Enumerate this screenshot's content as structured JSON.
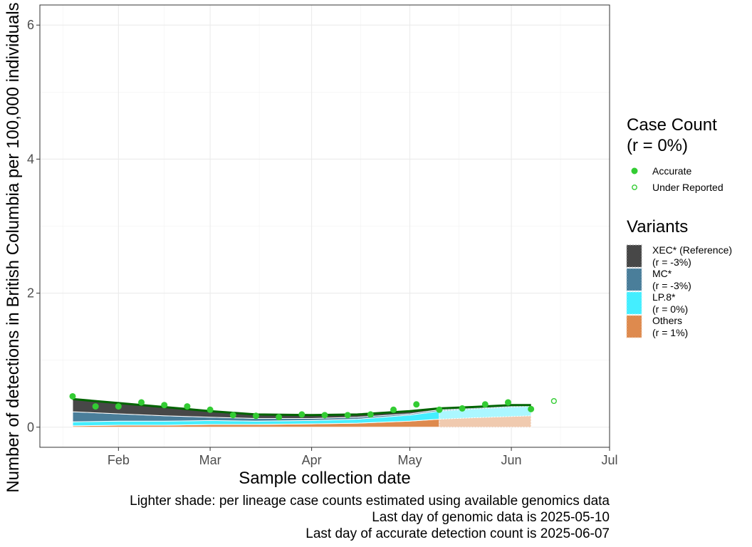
{
  "chart_data": {
    "type": "area",
    "xlabel": "Sample collection date",
    "ylabel": "Number of detections in British Columbia per 100,000 individuals",
    "xlim": [
      "2025-01-08",
      "2025-07-01"
    ],
    "ylim": [
      -0.3,
      6.3
    ],
    "x_ticks": [
      {
        "date": "2025-02-01",
        "label": "Feb"
      },
      {
        "date": "2025-03-01",
        "label": "Mar"
      },
      {
        "date": "2025-04-01",
        "label": "Apr"
      },
      {
        "date": "2025-05-01",
        "label": "May"
      },
      {
        "date": "2025-06-01",
        "label": "Jun"
      },
      {
        "date": "2025-07-01",
        "label": "Jul"
      }
    ],
    "y_ticks": [
      0,
      2,
      4,
      6
    ],
    "grid": true,
    "captions": [
      "Lighter shade: per lineage case counts estimated using available genomics data",
      "Last day of genomic data is 2025-05-10",
      "Last day of accurate detection count is 2025-06-07"
    ],
    "case_count_legend": {
      "title_line1": "Case Count",
      "title_line2": "(r = 0%)",
      "items": [
        {
          "label": "Accurate",
          "style": "filled",
          "color": "#33cc33"
        },
        {
          "label": "Under Reported",
          "style": "hollow",
          "color": "#33cc33"
        }
      ]
    },
    "variants_legend": {
      "title": "Variants",
      "items": [
        {
          "name": "XEC* (Reference)",
          "rate": "(r = -3%)",
          "color": "#474747"
        },
        {
          "name": "MC*",
          "rate": "(r = -3%)",
          "color": "#4a7e9a"
        },
        {
          "name": "LP.8*",
          "rate": "(r = 0%)",
          "color": "#44eeff"
        },
        {
          "name": "Others",
          "rate": "(r = 1%)",
          "color": "#de8a4e"
        }
      ]
    },
    "stack_dates": [
      "2025-01-18",
      "2025-02-01",
      "2025-02-15",
      "2025-03-01",
      "2025-03-15",
      "2025-04-01",
      "2025-04-15",
      "2025-05-01",
      "2025-05-10",
      "2025-05-20",
      "2025-06-01",
      "2025-06-07"
    ],
    "series": [
      {
        "name": "Others",
        "color": "#de8a4e",
        "values": [
          0.02,
          0.03,
          0.03,
          0.04,
          0.04,
          0.05,
          0.06,
          0.09,
          0.12,
          0.14,
          0.16,
          0.17
        ]
      },
      {
        "name": "LP.8*",
        "color": "#44eeff",
        "values": [
          0.06,
          0.06,
          0.06,
          0.06,
          0.05,
          0.05,
          0.06,
          0.09,
          0.12,
          0.13,
          0.14,
          0.14
        ]
      },
      {
        "name": "MC*",
        "color": "#4a7e9a",
        "values": [
          0.15,
          0.11,
          0.08,
          0.05,
          0.04,
          0.03,
          0.03,
          0.02,
          0.02,
          0.02,
          0.02,
          0.01
        ]
      },
      {
        "name": "XEC* (Reference)",
        "color": "#474747",
        "values": [
          0.19,
          0.16,
          0.13,
          0.09,
          0.05,
          0.05,
          0.04,
          0.03,
          0.02,
          0.02,
          0.01,
          0.01
        ]
      }
    ],
    "trend_line": {
      "color": "#006400",
      "dates": [
        "2025-01-18",
        "2025-02-01",
        "2025-02-15",
        "2025-03-01",
        "2025-03-15",
        "2025-04-01",
        "2025-04-15",
        "2025-05-01",
        "2025-05-10",
        "2025-05-20",
        "2025-06-01",
        "2025-06-07"
      ],
      "values": [
        0.42,
        0.36,
        0.3,
        0.24,
        0.19,
        0.18,
        0.19,
        0.24,
        0.28,
        0.3,
        0.33,
        0.33
      ]
    },
    "points": [
      {
        "date": "2025-01-18",
        "value": 0.46,
        "status": "Accurate"
      },
      {
        "date": "2025-01-25",
        "value": 0.31,
        "status": "Accurate"
      },
      {
        "date": "2025-02-01",
        "value": 0.31,
        "status": "Accurate"
      },
      {
        "date": "2025-02-08",
        "value": 0.37,
        "status": "Accurate"
      },
      {
        "date": "2025-02-15",
        "value": 0.33,
        "status": "Accurate"
      },
      {
        "date": "2025-02-22",
        "value": 0.31,
        "status": "Accurate"
      },
      {
        "date": "2025-03-01",
        "value": 0.26,
        "status": "Accurate"
      },
      {
        "date": "2025-03-08",
        "value": 0.18,
        "status": "Accurate"
      },
      {
        "date": "2025-03-15",
        "value": 0.17,
        "status": "Accurate"
      },
      {
        "date": "2025-03-22",
        "value": 0.15,
        "status": "Accurate"
      },
      {
        "date": "2025-03-29",
        "value": 0.19,
        "status": "Accurate"
      },
      {
        "date": "2025-04-05",
        "value": 0.18,
        "status": "Accurate"
      },
      {
        "date": "2025-04-12",
        "value": 0.18,
        "status": "Accurate"
      },
      {
        "date": "2025-04-19",
        "value": 0.19,
        "status": "Accurate"
      },
      {
        "date": "2025-04-26",
        "value": 0.26,
        "status": "Accurate"
      },
      {
        "date": "2025-05-03",
        "value": 0.34,
        "status": "Accurate"
      },
      {
        "date": "2025-05-10",
        "value": 0.26,
        "status": "Accurate"
      },
      {
        "date": "2025-05-17",
        "value": 0.28,
        "status": "Accurate"
      },
      {
        "date": "2025-05-24",
        "value": 0.34,
        "status": "Accurate"
      },
      {
        "date": "2025-05-31",
        "value": 0.37,
        "status": "Accurate"
      },
      {
        "date": "2025-06-07",
        "value": 0.27,
        "status": "Accurate"
      },
      {
        "date": "2025-06-14",
        "value": 0.39,
        "status": "Under Reported"
      }
    ],
    "genomic_cutoff": "2025-05-10"
  }
}
